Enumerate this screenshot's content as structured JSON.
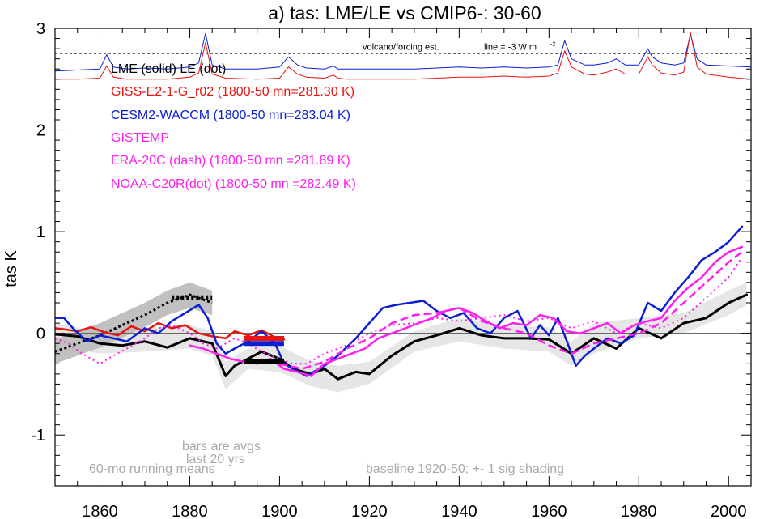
{
  "chart_data": {
    "type": "line",
    "title": "a) tas: LME/LE vs CMIP6-: 30-60",
    "xlabel": "",
    "ylabel": "tas K",
    "xlim": [
      1850,
      2005
    ],
    "ylim": [
      -1.5,
      3.0
    ],
    "xticks": [
      1860,
      1880,
      1900,
      1920,
      1940,
      1960,
      1980,
      2000
    ],
    "xtick_labels": [
      "1860",
      "1880",
      "1900",
      "1920",
      "1940",
      "1960",
      "1980",
      "2000"
    ],
    "yticks": [
      -1,
      0,
      1,
      2,
      3
    ],
    "ytick_labels": [
      "-1",
      "0",
      "1",
      "2",
      "3"
    ],
    "zero_line": 0,
    "reference_line": {
      "y": 2.75,
      "label": "volcano/forcing est.",
      "note": "line = -3 W m",
      "note_sup": "-2"
    },
    "legend": {
      "placement": "top-left",
      "entries": [
        {
          "label": "LME (solid)   LE (dot)",
          "color": "#000000"
        },
        {
          "label": "GISS-E2-1-G_r02 (1800-50 mn=281.30 K)",
          "color": "#e8140f"
        },
        {
          "label": "CESM2-WACCM (1800-50 mn=283.04 K)",
          "color": "#0a1ed2"
        },
        {
          "label": "GISTEMP",
          "color": "#ff1ef0"
        },
        {
          "label": "ERA-20C (dash) (1800-50 mn =281.89 K)",
          "color": "#ff1ef0"
        },
        {
          "label": "NOAA-C20R(dot) (1800-50 mn =282.49 K)",
          "color": "#ff1ef0"
        }
      ]
    },
    "annotations": {
      "bars_note_1": "bars are avgs",
      "bars_note_2": "last 20 yrs",
      "running_mean": "60-mo running means",
      "baseline": "baseline 1920-50; +- 1 sig shading"
    },
    "series": [
      {
        "name": "CESM2-WACCM forcing",
        "color": "#0a1ed2",
        "width": 1,
        "x": [
          1850,
          1855,
          1860,
          1861.5,
          1863,
          1866,
          1870,
          1875,
          1880,
          1882,
          1883.5,
          1885,
          1888,
          1895,
          1900,
          1902,
          1904,
          1906,
          1910,
          1912,
          1913,
          1915,
          1920,
          1925,
          1930,
          1935,
          1940,
          1945,
          1950,
          1955,
          1960,
          1962,
          1963.5,
          1965,
          1968,
          1970,
          1973,
          1975,
          1977,
          1980,
          1982,
          1983,
          1985,
          1988,
          1990,
          1991.5,
          1993,
          1995,
          2000,
          2005
        ],
        "y": [
          2.58,
          2.59,
          2.6,
          2.74,
          2.62,
          2.6,
          2.61,
          2.6,
          2.62,
          2.66,
          2.95,
          2.64,
          2.6,
          2.6,
          2.62,
          2.72,
          2.64,
          2.61,
          2.6,
          2.63,
          2.6,
          2.6,
          2.6,
          2.6,
          2.6,
          2.61,
          2.62,
          2.61,
          2.62,
          2.61,
          2.62,
          2.64,
          2.88,
          2.7,
          2.64,
          2.64,
          2.66,
          2.7,
          2.64,
          2.64,
          2.8,
          2.72,
          2.66,
          2.64,
          2.66,
          2.94,
          2.7,
          2.64,
          2.63,
          2.62
        ]
      },
      {
        "name": "GISS forcing",
        "color": "#e8140f",
        "width": 1,
        "x": [
          1850,
          1855,
          1860,
          1861.5,
          1863,
          1866,
          1870,
          1875,
          1880,
          1882,
          1883.5,
          1885,
          1888,
          1895,
          1900,
          1902,
          1904,
          1906,
          1910,
          1912,
          1913,
          1915,
          1920,
          1925,
          1930,
          1935,
          1940,
          1945,
          1950,
          1955,
          1960,
          1962,
          1963.5,
          1965,
          1968,
          1970,
          1973,
          1975,
          1977,
          1980,
          1982,
          1983,
          1985,
          1988,
          1990,
          1991.5,
          1993,
          1995,
          2000,
          2005
        ],
        "y": [
          2.5,
          2.5,
          2.51,
          2.63,
          2.52,
          2.5,
          2.5,
          2.5,
          2.52,
          2.56,
          2.86,
          2.55,
          2.51,
          2.5,
          2.51,
          2.62,
          2.55,
          2.52,
          2.51,
          2.54,
          2.51,
          2.5,
          2.5,
          2.5,
          2.5,
          2.51,
          2.52,
          2.52,
          2.53,
          2.52,
          2.53,
          2.56,
          2.78,
          2.62,
          2.55,
          2.54,
          2.57,
          2.6,
          2.55,
          2.55,
          2.72,
          2.64,
          2.56,
          2.54,
          2.57,
          2.96,
          2.62,
          2.55,
          2.52,
          2.5
        ]
      },
      {
        "name": "LME",
        "color": "#000000",
        "width": 3,
        "x": [
          1850,
          1855,
          1860,
          1865,
          1870,
          1875,
          1880,
          1885,
          1888,
          1890,
          1893,
          1896,
          1900,
          1903,
          1907,
          1910,
          1913,
          1917,
          1920,
          1925,
          1930,
          1935,
          1940,
          1945,
          1950,
          1955,
          1960,
          1965,
          1970,
          1975,
          1980,
          1985,
          1990,
          1995,
          2000,
          2004
        ],
        "y": [
          -0.01,
          -0.03,
          -0.1,
          -0.12,
          -0.08,
          -0.14,
          -0.05,
          -0.1,
          -0.42,
          -0.32,
          -0.25,
          -0.18,
          -0.25,
          -0.35,
          -0.4,
          -0.35,
          -0.45,
          -0.38,
          -0.4,
          -0.22,
          -0.08,
          -0.02,
          0.05,
          -0.02,
          -0.05,
          -0.05,
          -0.06,
          -0.2,
          -0.05,
          -0.15,
          0.05,
          -0.05,
          0.1,
          0.15,
          0.3,
          0.38
        ]
      },
      {
        "name": "LE",
        "color": "#000000",
        "width": 3,
        "dash": "3,3",
        "x": [
          1850,
          1855,
          1860,
          1865,
          1870,
          1875,
          1880,
          1885
        ],
        "y": [
          -0.18,
          -0.1,
          -0.02,
          0.08,
          0.18,
          0.3,
          0.38,
          0.3
        ]
      },
      {
        "name": "GISS-E2-1-G_r02",
        "color": "#e8140f",
        "width": 2.5,
        "x": [
          1850,
          1852,
          1855,
          1858,
          1861,
          1864,
          1867,
          1870,
          1873,
          1876,
          1879,
          1882,
          1885,
          1888,
          1890,
          1893,
          1896,
          1899,
          1901
        ],
        "y": [
          0.05,
          0.04,
          0.02,
          0.06,
          0.01,
          -0.02,
          0.07,
          0.02,
          0.1,
          0.05,
          0.08,
          0.0,
          -0.03,
          -0.05,
          0.02,
          -0.02,
          0.03,
          -0.04,
          -0.06
        ]
      },
      {
        "name": "CESM2-WACCM",
        "color": "#0a1ed2",
        "width": 2.5,
        "x": [
          1850,
          1852,
          1854,
          1857,
          1860,
          1863,
          1866,
          1870,
          1873,
          1876,
          1879,
          1882,
          1884,
          1886,
          1888,
          1890,
          1893,
          1896,
          1899,
          1901,
          1903,
          1906,
          1910,
          1913,
          1917,
          1920,
          1923,
          1926,
          1929,
          1932,
          1935,
          1938,
          1941,
          1944,
          1947,
          1950,
          1953,
          1956,
          1958,
          1960,
          1962,
          1964,
          1966,
          1968,
          1970,
          1973,
          1976,
          1979,
          1982,
          1985,
          1988,
          1991,
          1994,
          1997,
          2000,
          2003
        ],
        "y": [
          0.15,
          0.15,
          0.05,
          -0.08,
          -0.02,
          -0.05,
          -0.08,
          0.05,
          0.0,
          0.12,
          0.2,
          0.28,
          0.15,
          -0.1,
          -0.2,
          -0.15,
          -0.08,
          0.02,
          -0.1,
          -0.3,
          -0.35,
          -0.42,
          -0.32,
          -0.22,
          -0.05,
          0.1,
          0.25,
          0.28,
          0.3,
          0.32,
          0.22,
          0.15,
          0.2,
          0.05,
          0.0,
          0.15,
          0.22,
          -0.05,
          0.08,
          -0.02,
          0.15,
          -0.08,
          -0.32,
          -0.22,
          -0.15,
          -0.05,
          -0.1,
          -0.02,
          0.3,
          0.22,
          0.4,
          0.55,
          0.72,
          0.8,
          0.9,
          1.05
        ]
      },
      {
        "name": "GISTEMP",
        "color": "#ff1ef0",
        "width": 2.5,
        "x": [
          1880,
          1883,
          1886,
          1889,
          1892,
          1895,
          1898,
          1901,
          1904,
          1907,
          1910,
          1913,
          1916,
          1919,
          1922,
          1925,
          1928,
          1931,
          1934,
          1937,
          1940,
          1943,
          1946,
          1949,
          1952,
          1955,
          1958,
          1961,
          1964,
          1967,
          1970,
          1973,
          1976,
          1979,
          1982,
          1985,
          1988,
          1991,
          1994,
          1997,
          2000,
          2003
        ],
        "y": [
          -0.12,
          -0.15,
          -0.2,
          -0.25,
          -0.28,
          -0.3,
          -0.25,
          -0.35,
          -0.38,
          -0.42,
          -0.3,
          -0.25,
          -0.2,
          -0.15,
          -0.05,
          0.0,
          0.05,
          0.1,
          0.15,
          0.22,
          0.25,
          0.2,
          0.12,
          0.05,
          0.1,
          0.08,
          0.18,
          0.15,
          0.02,
          0.0,
          0.05,
          0.1,
          0.0,
          0.08,
          0.12,
          0.15,
          0.32,
          0.45,
          0.55,
          0.7,
          0.8,
          0.85
        ]
      },
      {
        "name": "ERA-20C",
        "color": "#ff1ef0",
        "width": 2.5,
        "dash": "10,5",
        "x": [
          1900,
          1905,
          1910,
          1915,
          1920,
          1925,
          1930,
          1935,
          1940,
          1945,
          1950,
          1955,
          1960,
          1965,
          1970,
          1975,
          1980,
          1985,
          1990,
          1995,
          2000,
          2003
        ],
        "y": [
          -0.3,
          -0.35,
          -0.28,
          -0.15,
          -0.05,
          0.1,
          0.18,
          0.2,
          0.25,
          0.12,
          0.05,
          0.0,
          -0.12,
          -0.2,
          -0.1,
          -0.05,
          0.0,
          0.1,
          0.3,
          0.5,
          0.7,
          0.8
        ]
      },
      {
        "name": "NOAA-C20R",
        "color": "#ff1ef0",
        "width": 2,
        "dash": "2,4",
        "x": [
          1850,
          1853,
          1856,
          1860,
          1863,
          1866,
          1870,
          1873,
          1876,
          1880,
          1883,
          1886,
          1890,
          1893,
          1896,
          1900,
          1903,
          1906,
          1910,
          1913,
          1916,
          1920,
          1925,
          1930,
          1935,
          1940,
          1945,
          1950,
          1955,
          1960,
          1965,
          1970,
          1975,
          1980,
          1985,
          1990,
          1995,
          2000,
          2003
        ],
        "y": [
          -0.05,
          -0.1,
          -0.2,
          -0.3,
          -0.22,
          -0.15,
          -0.05,
          0.05,
          0.08,
          0.0,
          -0.1,
          -0.15,
          -0.05,
          -0.1,
          -0.18,
          -0.25,
          -0.3,
          -0.3,
          -0.2,
          -0.15,
          -0.1,
          0.0,
          0.08,
          0.1,
          0.15,
          0.12,
          0.15,
          0.18,
          0.12,
          0.15,
          0.05,
          0.12,
          0.0,
          0.1,
          0.05,
          0.15,
          0.35,
          0.55,
          0.75
        ]
      }
    ],
    "shading": [
      {
        "name": "LME spread",
        "color": "#e6e6e6",
        "x": [
          1850,
          1860,
          1870,
          1880,
          1885,
          1888,
          1893,
          1900,
          1907,
          1913,
          1920,
          1930,
          1940,
          1950,
          1960,
          1965,
          1970,
          1980,
          1990,
          2000,
          2004
        ],
        "lower": [
          -0.12,
          -0.2,
          -0.18,
          -0.15,
          -0.22,
          -0.55,
          -0.35,
          -0.38,
          -0.52,
          -0.58,
          -0.5,
          -0.18,
          -0.08,
          -0.15,
          -0.18,
          -0.32,
          -0.2,
          -0.05,
          0.0,
          0.18,
          0.28
        ],
        "upper": [
          0.1,
          0.02,
          0.05,
          0.08,
          0.02,
          -0.28,
          -0.15,
          -0.12,
          -0.28,
          -0.32,
          -0.28,
          0.02,
          0.15,
          0.08,
          0.06,
          -0.08,
          0.1,
          0.15,
          0.2,
          0.42,
          0.5
        ]
      },
      {
        "name": "LE spread",
        "color": "#c0c0c0",
        "x": [
          1850,
          1855,
          1860,
          1865,
          1870,
          1875,
          1880,
          1885
        ],
        "lower": [
          -0.3,
          -0.22,
          -0.14,
          -0.04,
          0.06,
          0.18,
          0.25,
          0.18
        ],
        "upper": [
          -0.06,
          0.02,
          0.1,
          0.2,
          0.3,
          0.42,
          0.5,
          0.42
        ]
      }
    ],
    "bars": [
      {
        "name": "GISS avg last 20 yrs",
        "color": "#e8140f",
        "x0": 1892,
        "x1": 1901,
        "y": -0.05
      },
      {
        "name": "CESM2 avg last 20 yrs",
        "color": "#0a1ed2",
        "x0": 1892,
        "x1": 1901,
        "y": -0.1
      },
      {
        "name": "LME avg last 20 yrs",
        "color": "#000000",
        "x0": 1892,
        "x1": 1901,
        "y": -0.28
      },
      {
        "name": "LE avg last 20 yrs",
        "color": "#000000",
        "dash": "3,3",
        "x0": 1876,
        "x1": 1885,
        "y": 0.35
      }
    ]
  }
}
